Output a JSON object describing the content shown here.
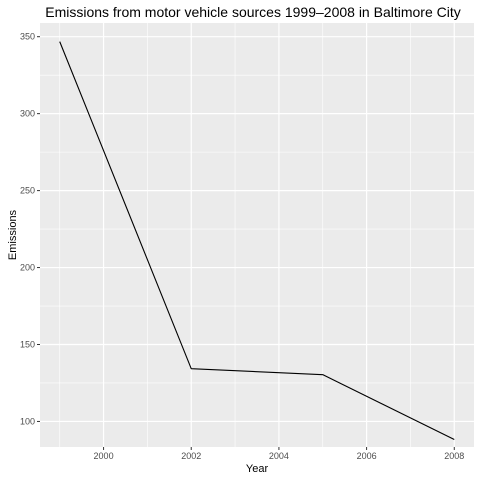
{
  "chart_data": {
    "type": "line",
    "title": "Emissions from motor vehicle sources 1999–2008 in Baltimore City",
    "xlabel": "Year",
    "ylabel": "Emissions",
    "x": [
      1999,
      2002,
      2005,
      2008
    ],
    "series": [
      {
        "values": [
          346.8,
          134.3,
          130.4,
          88.3
        ]
      }
    ],
    "xlim": [
      1998.55,
      2008.45
    ],
    "ylim": [
      83.4,
      358.9
    ],
    "x_ticks": [
      "2000",
      "2002",
      "2004",
      "2006",
      "2008"
    ],
    "y_ticks": [
      "100",
      "150",
      "200",
      "250",
      "300",
      "350"
    ],
    "grid": true,
    "legend": "none",
    "colors": {
      "panel": "#ebebeb",
      "grid_major": "#ffffff",
      "line": "#000000",
      "tick_label": "#4d4d4d"
    }
  }
}
